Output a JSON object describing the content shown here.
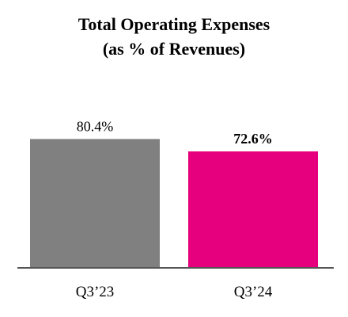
{
  "chart_data": {
    "type": "bar",
    "title": [
      "Total Operating Expenses",
      "(as % of Revenues)"
    ],
    "categories": [
      "Q3’23",
      "Q3’24"
    ],
    "values": [
      80.4,
      72.6
    ],
    "value_labels": [
      "80.4%",
      "72.6%"
    ],
    "bold_value_labels": [
      false,
      true
    ],
    "colors": [
      "#808080",
      "#e6007e"
    ],
    "ylim": [
      0,
      100
    ],
    "axis_color": "#555555",
    "grid": false,
    "legend": "none"
  }
}
